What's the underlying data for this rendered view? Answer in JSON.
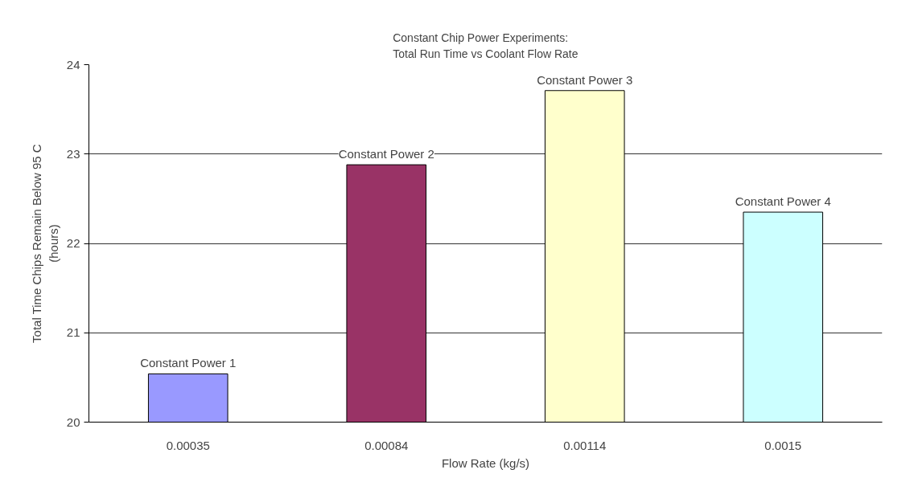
{
  "chart_data": {
    "type": "bar",
    "title": "Constant Chip Power Experiments:\nTotal Run Time vs Coolant Flow Rate",
    "xlabel": "Flow Rate (kg/s)",
    "ylabel": "Total Time Chips Remain Below 95 C\n(hours)",
    "categories": [
      "0.00035",
      "0.00084",
      "0.00114",
      "0.0015"
    ],
    "values": [
      20.54,
      22.88,
      23.71,
      22.35
    ],
    "colors": [
      "#9999ff",
      "#993366",
      "#ffffcc",
      "#ccffff"
    ],
    "ylim": [
      20,
      24
    ],
    "yticks": [
      20,
      21,
      22,
      23,
      24
    ],
    "grid": "y",
    "annotations": [
      {
        "text": "Constant Power 1",
        "x": "0.00035",
        "y": 20.54
      },
      {
        "text": "Constant Power 2",
        "x": "0.00084",
        "y": 22.88
      },
      {
        "text": "Constant Power 3",
        "x": "0.00114",
        "y": 23.71
      },
      {
        "text": "Constant Power 4",
        "x": "0.0015",
        "y": 22.35
      }
    ]
  }
}
